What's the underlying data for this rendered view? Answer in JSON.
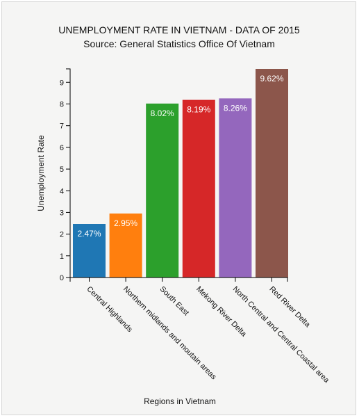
{
  "chart_data": {
    "type": "bar",
    "title": "UNEMPLOYMENT RATE IN VIETNAM - DATA OF 2015",
    "subtitle": "Source: General Statistics Office Of Vietnam",
    "xlabel": "Regions in Vietnam",
    "ylabel": "Unemployment Rate",
    "categories": [
      "Central Highlands",
      "Northern midlands and moutain areas",
      "South East",
      "Mekong River Delta",
      "North Central and Central Coastal area",
      "Red River Delta"
    ],
    "values": [
      2.47,
      2.95,
      8.02,
      8.19,
      8.26,
      9.62
    ],
    "data_labels": [
      "2.47%",
      "2.95%",
      "8.02%",
      "8.19%",
      "8.26%",
      "9.62%"
    ],
    "colors": [
      "#1f77b4",
      "#ff7f0e",
      "#2ca02c",
      "#d62728",
      "#9467bd",
      "#8c564b"
    ],
    "yticks": [
      0,
      1,
      2,
      3,
      4,
      5,
      6,
      7,
      8,
      9
    ],
    "ylim": [
      0,
      9.62
    ],
    "grid": false,
    "legend": "none"
  }
}
